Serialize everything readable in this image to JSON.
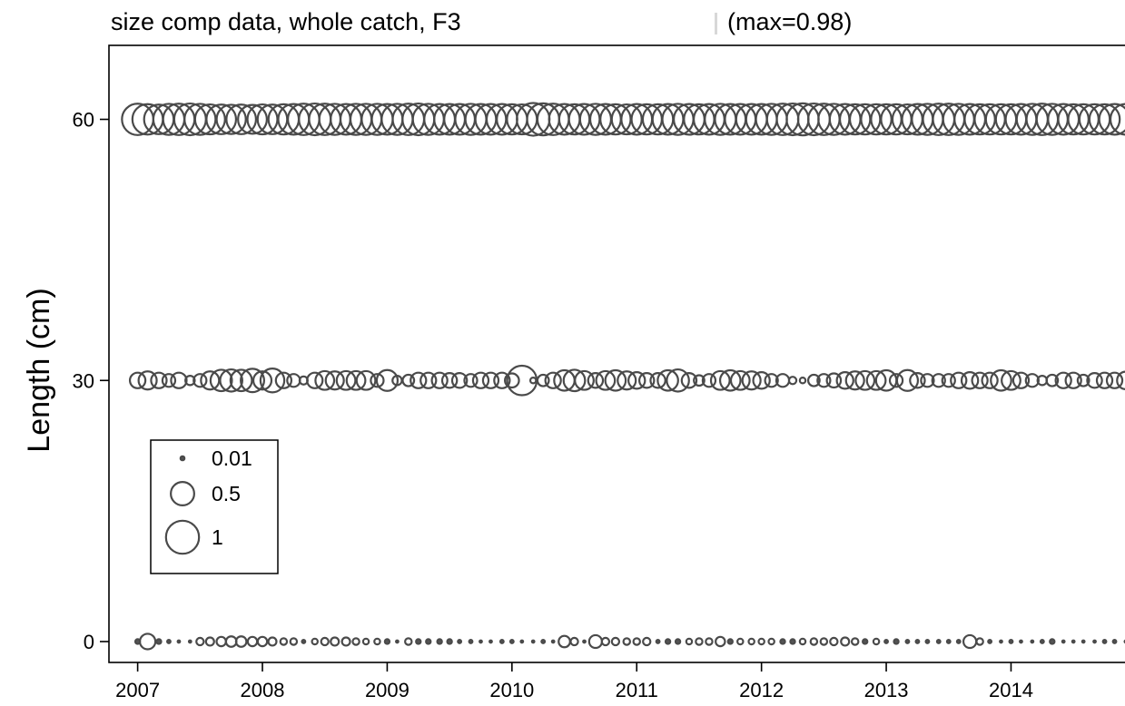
{
  "chart_data": {
    "type": "scatter",
    "title": "size comp data, whole catch, F3",
    "title_suffix": "(max=0.98)",
    "ylabel": "Length (cm)",
    "xlabel": "",
    "xlim": [
      2006.77,
      2015.03
    ],
    "ylim": [
      -2.4,
      68.5
    ],
    "x_ticks": [
      2007,
      2008,
      2009,
      2010,
      2011,
      2012,
      2013,
      2014
    ],
    "y_ticks": [
      0,
      30,
      60
    ],
    "max_value": 0.98,
    "legend": {
      "placement": "left",
      "entries": [
        {
          "label": "0.01",
          "value": 0.01
        },
        {
          "label": "0.5",
          "value": 0.5
        },
        {
          "label": "1",
          "value": 1
        }
      ]
    },
    "series": [
      {
        "length": 60,
        "x": [
          2007.0,
          2007.08,
          2007.17,
          2007.25,
          2007.33,
          2007.42,
          2007.5,
          2007.58,
          2007.67,
          2007.75,
          2007.83,
          2007.92,
          2008.0,
          2008.08,
          2008.17,
          2008.25,
          2008.33,
          2008.42,
          2008.5,
          2008.58,
          2008.67,
          2008.75,
          2008.83,
          2008.92,
          2009.0,
          2009.08,
          2009.17,
          2009.25,
          2009.33,
          2009.42,
          2009.5,
          2009.58,
          2009.67,
          2009.75,
          2009.83,
          2009.92,
          2010.0,
          2010.08,
          2010.17,
          2010.25,
          2010.33,
          2010.42,
          2010.5,
          2010.58,
          2010.67,
          2010.75,
          2010.83,
          2010.92,
          2011.0,
          2011.08,
          2011.17,
          2011.25,
          2011.33,
          2011.42,
          2011.5,
          2011.58,
          2011.67,
          2011.75,
          2011.83,
          2011.92,
          2012.0,
          2012.08,
          2012.17,
          2012.25,
          2012.33,
          2012.42,
          2012.5,
          2012.58,
          2012.67,
          2012.75,
          2012.83,
          2012.92,
          2013.0,
          2013.08,
          2013.17,
          2013.25,
          2013.33,
          2013.42,
          2013.5,
          2013.58,
          2013.67,
          2013.75,
          2013.83,
          2013.92,
          2014.0,
          2014.08,
          2014.17,
          2014.25,
          2014.33,
          2014.42,
          2014.5,
          2014.58,
          2014.67,
          2014.75,
          2014.83,
          2014.92
        ],
        "values": [
          0.9,
          0.85,
          0.8,
          0.88,
          0.9,
          0.92,
          0.88,
          0.82,
          0.8,
          0.78,
          0.8,
          0.76,
          0.82,
          0.8,
          0.84,
          0.86,
          0.9,
          0.92,
          0.9,
          0.88,
          0.86,
          0.88,
          0.88,
          0.88,
          0.86,
          0.88,
          0.9,
          0.92,
          0.88,
          0.86,
          0.86,
          0.86,
          0.88,
          0.86,
          0.86,
          0.86,
          0.84,
          0.82,
          0.98,
          0.94,
          0.9,
          0.86,
          0.84,
          0.86,
          0.88,
          0.86,
          0.84,
          0.82,
          0.86,
          0.84,
          0.84,
          0.86,
          0.88,
          0.86,
          0.84,
          0.86,
          0.88,
          0.86,
          0.86,
          0.86,
          0.86,
          0.88,
          0.9,
          0.92,
          0.94,
          0.92,
          0.9,
          0.88,
          0.86,
          0.84,
          0.84,
          0.84,
          0.84,
          0.84,
          0.82,
          0.86,
          0.88,
          0.9,
          0.9,
          0.88,
          0.86,
          0.84,
          0.84,
          0.84,
          0.84,
          0.86,
          0.88,
          0.9,
          0.88,
          0.86,
          0.84,
          0.84,
          0.84,
          0.84,
          0.86,
          0.86
        ]
      },
      {
        "length": 30,
        "x": [
          2007.0,
          2007.08,
          2007.17,
          2007.25,
          2007.33,
          2007.42,
          2007.5,
          2007.58,
          2007.67,
          2007.75,
          2007.83,
          2007.92,
          2008.0,
          2008.08,
          2008.17,
          2008.25,
          2008.33,
          2008.42,
          2008.5,
          2008.58,
          2008.67,
          2008.75,
          2008.83,
          2008.92,
          2009.0,
          2009.08,
          2009.17,
          2009.25,
          2009.33,
          2009.42,
          2009.5,
          2009.58,
          2009.67,
          2009.75,
          2009.83,
          2009.92,
          2010.0,
          2010.08,
          2010.17,
          2010.25,
          2010.33,
          2010.42,
          2010.5,
          2010.58,
          2010.67,
          2010.75,
          2010.83,
          2010.92,
          2011.0,
          2011.08,
          2011.17,
          2011.25,
          2011.33,
          2011.42,
          2011.5,
          2011.58,
          2011.67,
          2011.75,
          2011.83,
          2011.92,
          2012.0,
          2012.08,
          2012.17,
          2012.25,
          2012.33,
          2012.42,
          2012.5,
          2012.58,
          2012.67,
          2012.75,
          2012.83,
          2012.92,
          2013.0,
          2013.08,
          2013.17,
          2013.25,
          2013.33,
          2013.42,
          2013.5,
          2013.58,
          2013.67,
          2013.75,
          2013.83,
          2013.92,
          2014.0,
          2014.08,
          2014.17,
          2014.25,
          2014.33,
          2014.42,
          2014.5,
          2014.58,
          2014.67,
          2014.75,
          2014.83,
          2014.92
        ],
        "values": [
          0.22,
          0.3,
          0.22,
          0.15,
          0.22,
          0.08,
          0.15,
          0.3,
          0.42,
          0.45,
          0.42,
          0.5,
          0.3,
          0.52,
          0.22,
          0.15,
          0.06,
          0.22,
          0.32,
          0.3,
          0.32,
          0.32,
          0.32,
          0.15,
          0.4,
          0.08,
          0.12,
          0.22,
          0.22,
          0.22,
          0.2,
          0.2,
          0.15,
          0.22,
          0.22,
          0.22,
          0.18,
          0.8,
          0.03,
          0.12,
          0.22,
          0.38,
          0.42,
          0.32,
          0.2,
          0.32,
          0.38,
          0.3,
          0.25,
          0.2,
          0.2,
          0.38,
          0.45,
          0.2,
          0.1,
          0.15,
          0.32,
          0.38,
          0.32,
          0.3,
          0.25,
          0.15,
          0.15,
          0.05,
          0.03,
          0.12,
          0.15,
          0.18,
          0.25,
          0.3,
          0.32,
          0.32,
          0.38,
          0.15,
          0.4,
          0.2,
          0.15,
          0.15,
          0.15,
          0.22,
          0.25,
          0.22,
          0.22,
          0.38,
          0.32,
          0.22,
          0.15,
          0.08,
          0.12,
          0.22,
          0.22,
          0.12,
          0.2,
          0.22,
          0.22,
          0.28
        ]
      },
      {
        "length": 0,
        "x": [
          2007.0,
          2007.08,
          2007.17,
          2007.25,
          2007.33,
          2007.42,
          2007.5,
          2007.58,
          2007.67,
          2007.75,
          2007.83,
          2007.92,
          2008.0,
          2008.08,
          2008.17,
          2008.25,
          2008.33,
          2008.42,
          2008.5,
          2008.58,
          2008.67,
          2008.75,
          2008.83,
          2008.92,
          2009.0,
          2009.08,
          2009.17,
          2009.25,
          2009.33,
          2009.42,
          2009.5,
          2009.58,
          2009.67,
          2009.75,
          2009.83,
          2009.92,
          2010.0,
          2010.08,
          2010.17,
          2010.25,
          2010.33,
          2010.42,
          2010.5,
          2010.58,
          2010.67,
          2010.75,
          2010.83,
          2010.92,
          2011.0,
          2011.08,
          2011.17,
          2011.25,
          2011.33,
          2011.42,
          2011.5,
          2011.58,
          2011.67,
          2011.75,
          2011.83,
          2011.92,
          2012.0,
          2012.08,
          2012.17,
          2012.25,
          2012.33,
          2012.42,
          2012.5,
          2012.58,
          2012.67,
          2012.75,
          2012.83,
          2012.92,
          2013.0,
          2013.08,
          2013.17,
          2013.25,
          2013.33,
          2013.42,
          2013.5,
          2013.58,
          2013.67,
          2013.75,
          2013.83,
          2013.92,
          2014.0,
          2014.08,
          2014.17,
          2014.25,
          2014.33,
          2014.42,
          2014.5,
          2014.58,
          2014.67,
          2014.75,
          2014.83,
          2014.92
        ],
        "values": [
          0.02,
          0.22,
          0.02,
          0.01,
          0.005,
          0.005,
          0.05,
          0.06,
          0.08,
          0.1,
          0.1,
          0.08,
          0.08,
          0.06,
          0.04,
          0.04,
          0.01,
          0.03,
          0.05,
          0.06,
          0.06,
          0.04,
          0.03,
          0.03,
          0.02,
          0.005,
          0.04,
          0.02,
          0.02,
          0.02,
          0.02,
          0.01,
          0.01,
          0.005,
          0.005,
          0.01,
          0.01,
          0.005,
          0.005,
          0.01,
          0.005,
          0.12,
          0.05,
          0.005,
          0.15,
          0.05,
          0.05,
          0.04,
          0.04,
          0.05,
          0.01,
          0.02,
          0.02,
          0.03,
          0.04,
          0.04,
          0.08,
          0.02,
          0.03,
          0.03,
          0.03,
          0.03,
          0.02,
          0.02,
          0.03,
          0.04,
          0.04,
          0.05,
          0.06,
          0.04,
          0.02,
          0.03,
          0.01,
          0.02,
          0.01,
          0.01,
          0.01,
          0.01,
          0.01,
          0.01,
          0.15,
          0.04,
          0.01,
          0.005,
          0.01,
          0.005,
          0.005,
          0.01,
          0.02,
          0.005,
          0.005,
          0.005,
          0.005,
          0.01,
          0.01,
          0.005
        ]
      }
    ]
  }
}
